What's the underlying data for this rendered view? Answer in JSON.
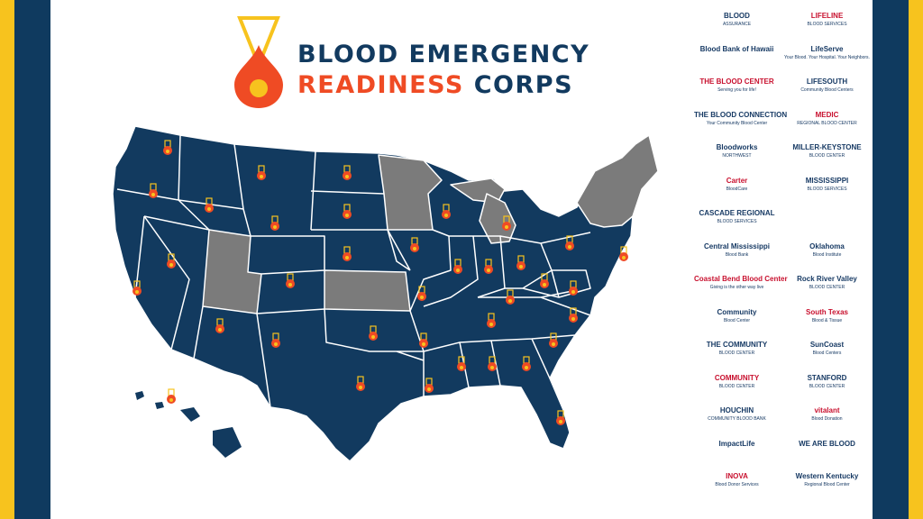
{
  "brand": {
    "title_line1": "BLOOD EMERGENCY",
    "title_line2_a": "READINESS",
    "title_line2_b": "CORPS",
    "colors": {
      "navy": "#0f3a5f",
      "orange": "#ef4b24",
      "yellow": "#f7c31e",
      "state_member": "#123a5f",
      "state_other": "#7b7b7b"
    }
  },
  "map": {
    "marker_icon": "blood-drop-medal-icon",
    "member_states": [
      "WA",
      "OR",
      "CA",
      "NV",
      "ID",
      "MT",
      "WY",
      "AZ",
      "CO",
      "NM",
      "ND",
      "SD",
      "NE",
      "OK",
      "TX",
      "IA",
      "MO",
      "AR",
      "LA",
      "WI",
      "IL",
      "IN",
      "MI",
      "OH",
      "KY",
      "TN",
      "MS",
      "AL",
      "GA",
      "FL",
      "SC",
      "NC",
      "VA",
      "WV",
      "PA",
      "NY",
      "NJ",
      "MD",
      "DE",
      "HI",
      "AK"
    ],
    "other_states": [
      "UT",
      "KS",
      "MN",
      "ME",
      "NH",
      "VT",
      "MA",
      "CT",
      "RI",
      "MI-UP"
    ]
  },
  "logos": [
    {
      "name": "blood-assurance-logo",
      "a": "BLOOD",
      "b": "ASSURANCE"
    },
    {
      "name": "lifeline-logo",
      "a": "LIFELINE",
      "b": "BLOOD SERVICES"
    },
    {
      "name": "blood-bank-hawaii-logo",
      "a": "Blood Bank of Hawaii",
      "b": ""
    },
    {
      "name": "lifeserve-logo",
      "a": "LifeServe",
      "b": "Your Blood. Your Hospital. Your Neighbors."
    },
    {
      "name": "the-blood-center-logo",
      "a": "THE BLOOD CENTER",
      "b": "Serving you for life!"
    },
    {
      "name": "lifesouth-logo",
      "a": "LIFESOUTH",
      "b": "Community Blood Centers"
    },
    {
      "name": "the-blood-connection-logo",
      "a": "THE BLOOD CONNECTION",
      "b": "Your Community Blood Center"
    },
    {
      "name": "medic-logo",
      "a": "MEDIC",
      "b": "REGIONAL BLOOD CENTER"
    },
    {
      "name": "bloodworks-logo",
      "a": "Bloodworks",
      "b": "NORTHWEST"
    },
    {
      "name": "miller-keystone-logo",
      "a": "MILLER-KEYSTONE",
      "b": "BLOOD CENTER"
    },
    {
      "name": "carter-bloodcare-logo",
      "a": "Carter",
      "b": "BloodCare"
    },
    {
      "name": "mississippi-blood-services-logo",
      "a": "MISSISSIPPI",
      "b": "BLOOD SERVICES"
    },
    {
      "name": "cascade-regional-logo",
      "a": "CASCADE REGIONAL",
      "b": "BLOOD SERVICES"
    },
    {
      "name": "california-logo",
      "a": "",
      "b": ""
    },
    {
      "name": "central-mississippi-logo",
      "a": "Central Mississippi",
      "b": "Blood Bank"
    },
    {
      "name": "oklahoma-blood-institute-logo",
      "a": "Oklahoma",
      "b": "Blood Institute"
    },
    {
      "name": "coastal-bend-logo",
      "a": "Coastal Bend Blood Center",
      "b": "Giving is the other way live"
    },
    {
      "name": "rock-river-valley-logo",
      "a": "Rock River Valley",
      "b": "BLOOD CENTER"
    },
    {
      "name": "community-blood-center-logo",
      "a": "Community",
      "b": "Blood Center"
    },
    {
      "name": "south-texas-logo",
      "a": "South Texas",
      "b": "Blood & Tissue"
    },
    {
      "name": "the-community-blood-center-logo",
      "a": "THE COMMUNITY",
      "b": "BLOOD CENTER"
    },
    {
      "name": "suncoast-logo",
      "a": "SunCoast",
      "b": "Blood Centers"
    },
    {
      "name": "community-blood-center-2-logo",
      "a": "COMMUNITY",
      "b": "BLOOD CENTER"
    },
    {
      "name": "stanford-logo",
      "a": "STANFORD",
      "b": "BLOOD CENTER"
    },
    {
      "name": "houchin-logo",
      "a": "HOUCHIN",
      "b": "COMMUNITY BLOOD BANK"
    },
    {
      "name": "vitalant-logo",
      "a": "vitalant",
      "b": "Blood Donation"
    },
    {
      "name": "impactlife-logo",
      "a": "ImpactLife",
      "b": ""
    },
    {
      "name": "we-are-blood-logo",
      "a": "WE ARE BLOOD",
      "b": ""
    },
    {
      "name": "inova-logo",
      "a": "INOVA",
      "b": "Blood Donor Services"
    },
    {
      "name": "western-kentucky-logo",
      "a": "Western Kentucky",
      "b": "Regional Blood Center"
    }
  ]
}
